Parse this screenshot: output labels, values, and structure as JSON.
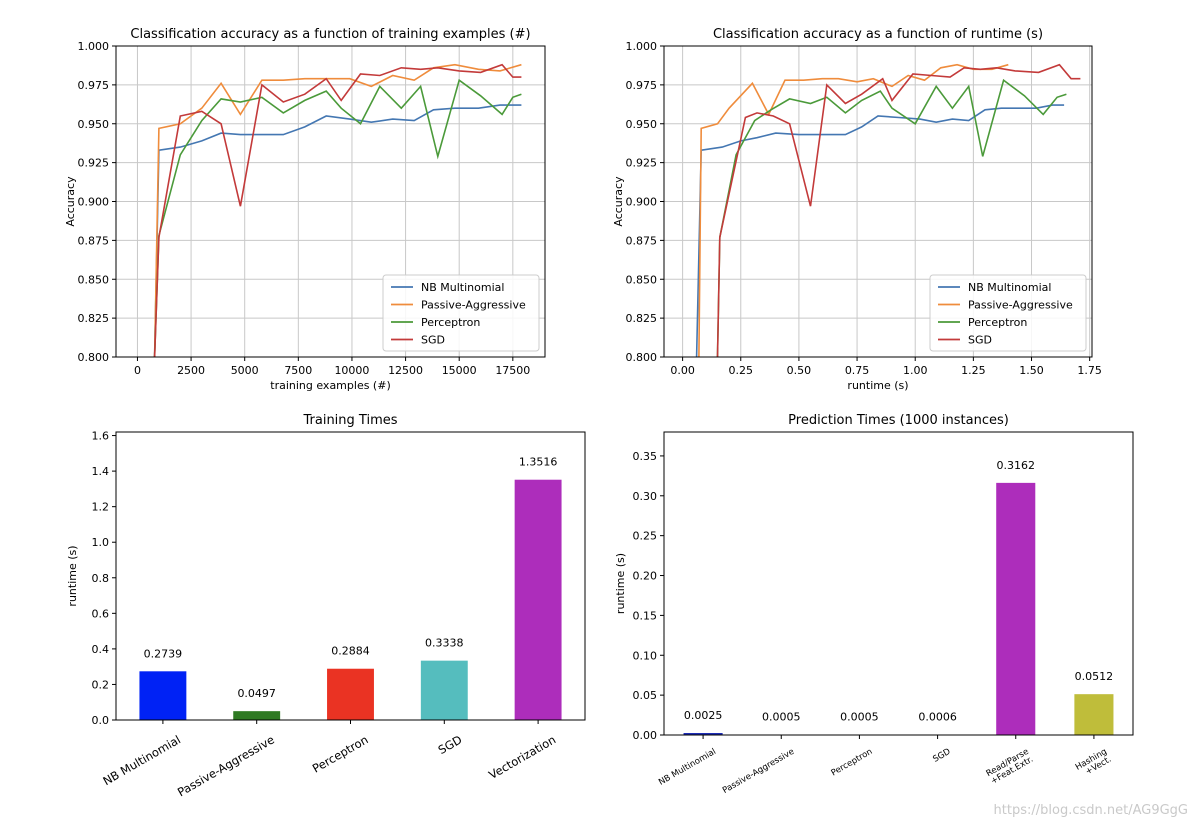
{
  "colors": {
    "nb": "#4477b2",
    "pa": "#ef8c3c",
    "perceptron": "#4b9a3a",
    "sgd": "#c33a3a",
    "grid": "#c8c8c8"
  },
  "watermark": "https://blog.csdn.net/AG9GgG",
  "chart_data": [
    {
      "type": "line",
      "title": "Classification accuracy as a function of training examples (#)",
      "xlabel": "training examples (#)",
      "ylabel": "Accuracy",
      "xlim": [
        -1000,
        19000
      ],
      "ylim": [
        0.8,
        1.0
      ],
      "xticks": [
        0,
        2500,
        5000,
        7500,
        10000,
        12500,
        15000,
        17500
      ],
      "xtick_labels": [
        "0",
        "2500",
        "5000",
        "7500",
        "10000",
        "12500",
        "15000",
        "17500"
      ],
      "yticks": [
        0.8,
        0.825,
        0.85,
        0.875,
        0.9,
        0.925,
        0.95,
        0.975,
        1.0
      ],
      "ytick_labels": [
        "0.800",
        "0.825",
        "0.850",
        "0.875",
        "0.900",
        "0.925",
        "0.950",
        "0.975",
        "1.000"
      ],
      "grid": true,
      "legend": "lower-right",
      "series": [
        {
          "name": "NB Multinomial",
          "color_key": "nb",
          "x": [
            800,
            1000,
            2000,
            3000,
            3900,
            4800,
            5800,
            6800,
            7800,
            8800,
            9900,
            10900,
            11900,
            12900,
            13800,
            14800,
            15900,
            16900,
            17900
          ],
          "y": [
            0.8,
            0.933,
            0.935,
            0.939,
            0.944,
            0.943,
            0.943,
            0.943,
            0.948,
            0.955,
            0.953,
            0.951,
            0.953,
            0.952,
            0.959,
            0.96,
            0.96,
            0.962,
            0.962
          ]
        },
        {
          "name": "Passive-Aggressive",
          "color_key": "pa",
          "x": [
            800,
            1000,
            2000,
            3000,
            3900,
            4800,
            5800,
            6800,
            7800,
            8800,
            9900,
            10900,
            11900,
            12900,
            13800,
            14800,
            15900,
            16900,
            17900
          ],
          "y": [
            0.8,
            0.947,
            0.95,
            0.96,
            0.976,
            0.956,
            0.978,
            0.978,
            0.979,
            0.979,
            0.979,
            0.974,
            0.981,
            0.978,
            0.986,
            0.988,
            0.985,
            0.984,
            0.988
          ]
        },
        {
          "name": "Perceptron",
          "color_key": "perceptron",
          "x": [
            800,
            1000,
            2000,
            3000,
            3900,
            4800,
            5800,
            6800,
            7800,
            8800,
            9500,
            10400,
            11300,
            12300,
            13200,
            14000,
            15000,
            16000,
            17000,
            17500,
            17900
          ],
          "y": [
            0.8,
            0.878,
            0.93,
            0.952,
            0.966,
            0.964,
            0.967,
            0.957,
            0.965,
            0.971,
            0.96,
            0.95,
            0.974,
            0.96,
            0.974,
            0.929,
            0.978,
            0.968,
            0.956,
            0.967,
            0.969
          ]
        },
        {
          "name": "SGD",
          "color_key": "sgd",
          "x": [
            800,
            1000,
            2000,
            3000,
            3900,
            4800,
            5800,
            6800,
            7800,
            8800,
            9500,
            10400,
            11300,
            12300,
            13200,
            14000,
            15000,
            16000,
            17000,
            17500,
            17900
          ],
          "y": [
            0.8,
            0.877,
            0.955,
            0.958,
            0.95,
            0.897,
            0.975,
            0.964,
            0.969,
            0.979,
            0.965,
            0.982,
            0.981,
            0.986,
            0.985,
            0.986,
            0.984,
            0.983,
            0.988,
            0.98,
            0.98
          ]
        }
      ]
    },
    {
      "type": "line",
      "title": "Classification accuracy as a function of runtime (s)",
      "xlabel": "runtime (s)",
      "ylabel": "Accuracy",
      "xlim": [
        -0.08,
        1.76
      ],
      "ylim": [
        0.8,
        1.0
      ],
      "xticks": [
        0.0,
        0.25,
        0.5,
        0.75,
        1.0,
        1.25,
        1.5,
        1.75
      ],
      "xtick_labels": [
        "0.00",
        "0.25",
        "0.50",
        "0.75",
        "1.00",
        "1.25",
        "1.50",
        "1.75"
      ],
      "yticks": [
        0.8,
        0.825,
        0.85,
        0.875,
        0.9,
        0.925,
        0.95,
        0.975,
        1.0
      ],
      "ytick_labels": [
        "0.800",
        "0.825",
        "0.850",
        "0.875",
        "0.900",
        "0.925",
        "0.950",
        "0.975",
        "1.000"
      ],
      "grid": true,
      "legend": "lower-right",
      "series": [
        {
          "name": "NB Multinomial",
          "color_key": "nb",
          "x": [
            0.06,
            0.08,
            0.17,
            0.25,
            0.32,
            0.4,
            0.5,
            0.6,
            0.7,
            0.77,
            0.84,
            0.93,
            1.02,
            1.09,
            1.16,
            1.23,
            1.3,
            1.37,
            1.45,
            1.52,
            1.59,
            1.64
          ],
          "y": [
            0.8,
            0.933,
            0.935,
            0.939,
            0.941,
            0.944,
            0.943,
            0.943,
            0.943,
            0.948,
            0.955,
            0.954,
            0.953,
            0.951,
            0.953,
            0.952,
            0.959,
            0.96,
            0.96,
            0.96,
            0.962,
            0.962
          ]
        },
        {
          "name": "Passive-Aggressive",
          "color_key": "pa",
          "x": [
            0.07,
            0.08,
            0.15,
            0.2,
            0.3,
            0.37,
            0.44,
            0.52,
            0.6,
            0.67,
            0.75,
            0.82,
            0.9,
            0.97,
            1.04,
            1.11,
            1.18,
            1.25,
            1.33,
            1.4
          ],
          "y": [
            0.8,
            0.947,
            0.95,
            0.96,
            0.976,
            0.956,
            0.978,
            0.978,
            0.979,
            0.979,
            0.977,
            0.979,
            0.974,
            0.981,
            0.978,
            0.986,
            0.988,
            0.985,
            0.985,
            0.988
          ]
        },
        {
          "name": "Perceptron",
          "color_key": "perceptron",
          "x": [
            0.15,
            0.16,
            0.23,
            0.31,
            0.38,
            0.46,
            0.55,
            0.62,
            0.7,
            0.77,
            0.85,
            0.9,
            1.0,
            1.09,
            1.16,
            1.23,
            1.29,
            1.38,
            1.47,
            1.55,
            1.61,
            1.65
          ],
          "y": [
            0.8,
            0.877,
            0.93,
            0.952,
            0.959,
            0.966,
            0.963,
            0.967,
            0.957,
            0.965,
            0.971,
            0.96,
            0.95,
            0.974,
            0.96,
            0.974,
            0.929,
            0.978,
            0.968,
            0.956,
            0.967,
            0.969
          ]
        },
        {
          "name": "SGD",
          "color_key": "sgd",
          "x": [
            0.15,
            0.16,
            0.27,
            0.32,
            0.39,
            0.46,
            0.55,
            0.62,
            0.7,
            0.77,
            0.86,
            0.9,
            0.99,
            1.07,
            1.15,
            1.21,
            1.28,
            1.35,
            1.43,
            1.53,
            1.62,
            1.67,
            1.71
          ],
          "y": [
            0.8,
            0.877,
            0.954,
            0.957,
            0.955,
            0.95,
            0.897,
            0.975,
            0.963,
            0.969,
            0.979,
            0.965,
            0.982,
            0.981,
            0.98,
            0.986,
            0.985,
            0.986,
            0.984,
            0.983,
            0.988,
            0.979,
            0.979
          ]
        }
      ]
    },
    {
      "type": "bar",
      "title": "Training Times",
      "xlabel": "",
      "ylabel": "runtime (s)",
      "ylim": [
        0,
        1.62
      ],
      "yticks": [
        0.0,
        0.2,
        0.4,
        0.6,
        0.8,
        1.0,
        1.2,
        1.4,
        1.6
      ],
      "ytick_labels": [
        "0.0",
        "0.2",
        "0.4",
        "0.6",
        "0.8",
        "1.0",
        "1.2",
        "1.4",
        "1.6"
      ],
      "grid": false,
      "categories": [
        "NB Multinomial",
        "Passive-Aggressive",
        "Perceptron",
        "SGD",
        "Vectorization"
      ],
      "values": [
        0.2739,
        0.0497,
        0.2884,
        0.3338,
        1.3516
      ],
      "value_labels": [
        "0.2739",
        "0.0497",
        "0.2884",
        "0.3338",
        "1.3516"
      ],
      "colors": [
        "#0022f5",
        "#2f7a23",
        "#ea3323",
        "#55bdbe",
        "#ad2dbb"
      ]
    },
    {
      "type": "bar",
      "title": "Prediction Times (1000 instances)",
      "xlabel": "",
      "ylabel": "runtime (s)",
      "ylim": [
        0,
        0.38
      ],
      "yticks": [
        0.0,
        0.05,
        0.1,
        0.15,
        0.2,
        0.25,
        0.3,
        0.35
      ],
      "ytick_labels": [
        "0.00",
        "0.05",
        "0.10",
        "0.15",
        "0.20",
        "0.25",
        "0.30",
        "0.35"
      ],
      "grid": false,
      "categories": [
        "NB Multinomial",
        "Passive-Aggressive",
        "Perceptron",
        "SGD",
        "Read/Parse\n+Feat.Extr.",
        "Hashing\n+Vect."
      ],
      "values": [
        0.0025,
        0.0005,
        0.0005,
        0.0006,
        0.3162,
        0.0512
      ],
      "value_labels": [
        "0.0025",
        "0.0005",
        "0.0005",
        "0.0006",
        "0.3162",
        "0.0512"
      ],
      "colors": [
        "#1d2bb5",
        "#2f7a23",
        "#ea3323",
        "#55bdbe",
        "#ad2dbb",
        "#bfbd3a"
      ]
    }
  ]
}
